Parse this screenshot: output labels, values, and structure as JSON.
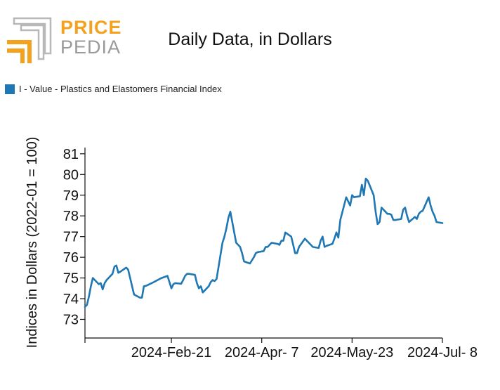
{
  "logo": {
    "word1": "PRICE",
    "word2": "PEDIA",
    "colors": {
      "accent": "#f4a11d",
      "gray": "#9a9a9a"
    }
  },
  "chart_data": {
    "type": "line",
    "title": "Daily Data, in Dollars",
    "ylabel": "Indices in Dollars (2022-01 = 100)",
    "xlabel": "",
    "legend": {
      "placement": "top-left"
    },
    "yticks": [
      73,
      74,
      75,
      76,
      77,
      78,
      79,
      80,
      81
    ],
    "ylim": [
      72.1,
      81.3
    ],
    "xlim": [
      "2024-01-08",
      "2024-07-08"
    ],
    "xticks": [
      {
        "date": "2024-01-08",
        "label": ""
      },
      {
        "date": "2024-02-21",
        "label": "2024-Feb-21"
      },
      {
        "date": "2024-04-07",
        "label": "2024-Apr- 7"
      },
      {
        "date": "2024-05-23",
        "label": "2024-May-23"
      },
      {
        "date": "2024-07-08",
        "label": "2024-Jul- 8"
      }
    ],
    "grid": false,
    "series": [
      {
        "name": "I - Value - Plastics and Elastomers Financial Index",
        "color": "#1f77b4",
        "x": [
          "2024-01-08",
          "2024-01-09",
          "2024-01-10",
          "2024-01-11",
          "2024-01-12",
          "2024-01-15",
          "2024-01-16",
          "2024-01-17",
          "2024-01-18",
          "2024-01-19",
          "2024-01-22",
          "2024-01-23",
          "2024-01-24",
          "2024-01-25",
          "2024-01-26",
          "2024-01-29",
          "2024-01-30",
          "2024-01-31",
          "2024-02-01",
          "2024-02-02",
          "2024-02-05",
          "2024-02-06",
          "2024-02-07",
          "2024-02-08",
          "2024-02-09",
          "2024-02-12",
          "2024-02-13",
          "2024-02-14",
          "2024-02-15",
          "2024-02-16",
          "2024-02-19",
          "2024-02-20",
          "2024-02-21",
          "2024-02-22",
          "2024-02-23",
          "2024-02-26",
          "2024-02-27",
          "2024-02-28",
          "2024-02-29",
          "2024-03-01",
          "2024-03-04",
          "2024-03-05",
          "2024-03-06",
          "2024-03-07",
          "2024-03-08",
          "2024-03-11",
          "2024-03-12",
          "2024-03-13",
          "2024-03-14",
          "2024-03-15",
          "2024-03-18",
          "2024-03-19",
          "2024-03-20",
          "2024-03-21",
          "2024-03-22",
          "2024-03-25",
          "2024-03-26",
          "2024-03-27",
          "2024-03-28",
          "2024-03-29",
          "2024-04-01",
          "2024-04-02",
          "2024-04-03",
          "2024-04-04",
          "2024-04-05",
          "2024-04-08",
          "2024-04-09",
          "2024-04-10",
          "2024-04-11",
          "2024-04-12",
          "2024-04-15",
          "2024-04-16",
          "2024-04-17",
          "2024-04-18",
          "2024-04-19",
          "2024-04-22",
          "2024-04-23",
          "2024-04-24",
          "2024-04-25",
          "2024-04-26",
          "2024-04-29",
          "2024-04-30",
          "2024-05-01",
          "2024-05-02",
          "2024-05-03",
          "2024-05-06",
          "2024-05-07",
          "2024-05-08",
          "2024-05-09",
          "2024-05-10",
          "2024-05-13",
          "2024-05-14",
          "2024-05-15",
          "2024-05-16",
          "2024-05-17",
          "2024-05-20",
          "2024-05-21",
          "2024-05-22",
          "2024-05-23",
          "2024-05-24",
          "2024-05-27",
          "2024-05-28",
          "2024-05-29",
          "2024-05-30",
          "2024-05-31",
          "2024-06-03",
          "2024-06-04",
          "2024-06-05",
          "2024-06-06",
          "2024-06-07",
          "2024-06-10",
          "2024-06-11",
          "2024-06-12",
          "2024-06-13",
          "2024-06-14",
          "2024-06-17",
          "2024-06-18",
          "2024-06-19",
          "2024-06-20",
          "2024-06-21",
          "2024-06-24",
          "2024-06-25",
          "2024-06-26",
          "2024-06-27",
          "2024-06-28",
          "2024-07-01",
          "2024-07-02",
          "2024-07-03",
          "2024-07-04",
          "2024-07-05",
          "2024-07-08"
        ],
        "y": [
          73.6,
          73.7,
          74.1,
          74.6,
          75.0,
          74.7,
          74.75,
          74.45,
          74.75,
          74.9,
          75.2,
          75.55,
          75.6,
          75.25,
          75.3,
          75.5,
          75.4,
          75.0,
          74.6,
          74.2,
          74.05,
          74.05,
          74.6,
          74.62,
          74.66,
          74.8,
          74.85,
          74.9,
          74.95,
          75.0,
          75.1,
          74.8,
          74.5,
          74.7,
          74.75,
          74.72,
          74.9,
          75.1,
          75.2,
          75.2,
          75.15,
          74.75,
          74.5,
          74.6,
          74.3,
          74.6,
          74.8,
          74.9,
          74.85,
          74.95,
          76.7,
          77.0,
          77.4,
          77.9,
          78.2,
          76.7,
          76.6,
          76.5,
          76.2,
          75.8,
          75.7,
          75.85,
          76.0,
          76.2,
          76.25,
          76.3,
          76.5,
          76.5,
          76.6,
          76.7,
          76.65,
          76.6,
          76.8,
          76.8,
          77.2,
          77.0,
          76.6,
          76.2,
          76.2,
          76.5,
          76.9,
          76.8,
          76.7,
          76.6,
          76.5,
          76.45,
          76.8,
          77.0,
          76.5,
          76.55,
          76.65,
          76.9,
          77.2,
          76.95,
          77.8,
          78.9,
          78.7,
          78.5,
          79.0,
          78.9,
          78.95,
          79.5,
          79.0,
          79.8,
          79.7,
          79.0,
          78.2,
          77.6,
          77.7,
          78.4,
          78.1,
          78.1,
          78.05,
          77.8,
          77.8,
          77.85,
          78.3,
          78.4,
          78.0,
          77.7,
          77.95,
          77.85,
          78.1,
          78.2,
          78.25,
          78.9,
          78.5,
          78.2,
          78.0,
          77.7,
          77.65
        ]
      }
    ]
  }
}
